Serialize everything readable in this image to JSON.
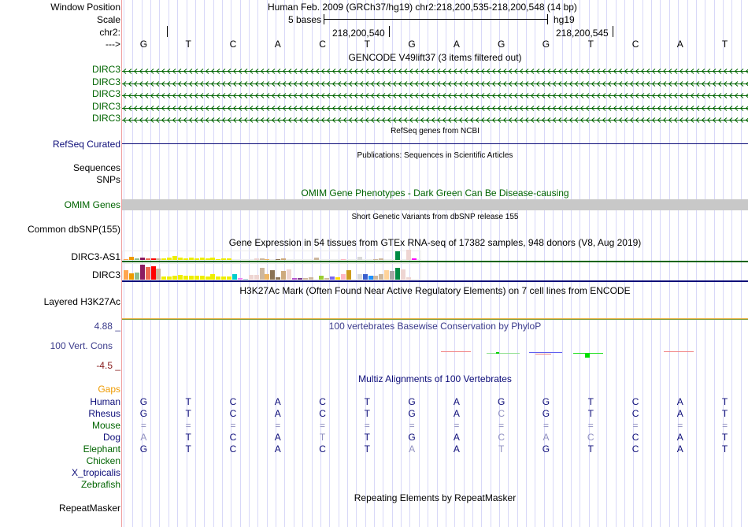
{
  "window_position": {
    "label": "Window Position",
    "value": "Human Feb. 2009 (GRCh37/hg19)   chr2:218,200,535-218,200,548 (14 bp)"
  },
  "scale": {
    "label": "Scale",
    "bar_label": "5 bases",
    "assembly": "hg19"
  },
  "chrom": {
    "label": "chr2:",
    "ticks": [
      "218,200,540",
      "218,200,545"
    ]
  },
  "strand": {
    "label": "--->"
  },
  "sequence": [
    "G",
    "T",
    "C",
    "A",
    "C",
    "T",
    "G",
    "A",
    "G",
    "G",
    "T",
    "C",
    "A",
    "T"
  ],
  "gencode": {
    "title": "GENCODE V49lift37 (3 items filtered out)",
    "tracks": [
      "DIRC3",
      "DIRC3",
      "DIRC3",
      "DIRC3",
      "DIRC3"
    ],
    "color": "#006400"
  },
  "refseq": {
    "title": "RefSeq genes from NCBI",
    "label": "RefSeq Curated",
    "color": "#0c0c78"
  },
  "publications": {
    "title": "Publications: Sequences in Scientific Articles",
    "labels": [
      "Sequences",
      "SNPs"
    ]
  },
  "omim": {
    "title": "OMIM Gene Phenotypes - Dark Green Can Be Disease-causing",
    "label": "OMIM Genes",
    "color": "#006400"
  },
  "dbsnp": {
    "title": "Short Genetic Variants from dbSNP release 155",
    "label": "Common dbSNP(155)"
  },
  "gtex": {
    "title": "Gene Expression in 54 tissues from GTEx RNA-seq of 17382 samples, 948 donors (V8, Aug 2019)",
    "genes": [
      {
        "label": "DIRC3-AS1",
        "line_color": "#006400",
        "values": [
          1,
          4,
          2,
          3,
          2,
          2,
          2,
          2,
          3,
          5,
          3,
          2,
          3,
          2,
          3,
          2,
          3,
          1,
          2,
          2,
          0,
          0,
          0,
          0,
          2,
          2,
          1,
          0,
          1,
          2,
          0,
          0,
          0,
          0,
          0,
          3,
          0,
          0,
          0,
          0,
          1,
          0,
          0,
          4,
          0,
          0,
          1,
          2,
          0,
          0,
          11,
          0,
          13,
          2
        ]
      },
      {
        "label": "DIRC3",
        "line_color": "#0c0c78",
        "values": [
          12,
          8,
          9,
          19,
          16,
          17,
          14,
          4,
          4,
          5,
          6,
          5,
          5,
          5,
          5,
          4,
          7,
          4,
          4,
          4,
          7,
          2,
          1,
          6,
          6,
          15,
          7,
          12,
          3,
          11,
          13,
          2,
          2,
          2,
          3,
          0,
          5,
          2,
          4,
          3,
          7,
          12,
          0,
          7,
          7,
          5,
          5,
          7,
          12,
          11,
          15,
          13,
          3,
          0
        ]
      }
    ],
    "colors": [
      "#FFA54F",
      "#EE9A00",
      "#8FBC8F",
      "#8B1C62",
      "#EE6A50",
      "#FF0000",
      "#CDB79E",
      "#EEEE00",
      "#EEEE00",
      "#EEEE00",
      "#EEEE00",
      "#EEEE00",
      "#EEEE00",
      "#EEEE00",
      "#EEEE00",
      "#EEEE00",
      "#EEEE00",
      "#EEEE00",
      "#EEEE00",
      "#EEEE00",
      "#00CDCD",
      "#EE82EE",
      "#9AC0CD",
      "#EED5D2",
      "#EED5D2",
      "#CDB79E",
      "#EEB766",
      "#8B7355",
      "#8B7355",
      "#CDAA7D",
      "#EED5D2",
      "#B452CD",
      "#7A378B",
      "#CDB79E",
      "#CDB79E",
      "#CDB79E",
      "#9ACD32",
      "#CDB79E",
      "#7A67EE",
      "#FFD700",
      "#FFB6C1",
      "#CD9B1D",
      "#B4EEB4",
      "#D9D9D9",
      "#3A5FCD",
      "#1E90FF",
      "#CDB79E",
      "#CDB79E",
      "#FFD39B",
      "#A6A6A6",
      "#008B45",
      "#EED5D2",
      "#EED5D2",
      "#FF00FF"
    ]
  },
  "h3k27ac": {
    "title": "H3K27Ac Mark (Often Found Near Active Regulatory Elements) on 7 cell lines from ENCODE",
    "label": "Layered H3K27Ac"
  },
  "phylop": {
    "title": "100 vertebrates Basewise Conservation by PhyloP",
    "label": "100 Vert. Cons",
    "max": "4.88 _",
    "min": "-4.5 _",
    "color": "#3c3c8c"
  },
  "multiz": {
    "title": "Multiz Alignments of 100 Vertebrates",
    "gaps_label": "Gaps",
    "species": [
      {
        "name": "Human",
        "color": "#0c0c78",
        "seq": "GTCACTGAGGTCAT",
        "dim": ""
      },
      {
        "name": "Rhesus",
        "color": "#0c0c78",
        "seq": "GTCACTGACGTCAT",
        "dim": "00000000100000"
      },
      {
        "name": "Mouse",
        "color": "#006400",
        "seq": "==============",
        "dim": "11111111111111"
      },
      {
        "name": "Dog",
        "color": "#0c0c78",
        "seq": "ATCATTGACACCAT",
        "dim": "10001000111000"
      },
      {
        "name": "Elephant",
        "color": "#006400",
        "seq": "GTCACTAATGTCAT",
        "dim": "00000010100000"
      },
      {
        "name": "Chicken",
        "color": "#006400",
        "seq": "",
        "dim": ""
      },
      {
        "name": "X_tropicalis",
        "color": "#0c0c78",
        "seq": "",
        "dim": ""
      },
      {
        "name": "Zebrafish",
        "color": "#006400",
        "seq": "",
        "dim": ""
      }
    ]
  },
  "repeatmasker": {
    "title": "Repeating Elements by RepeatMasker",
    "label": "RepeatMasker"
  }
}
